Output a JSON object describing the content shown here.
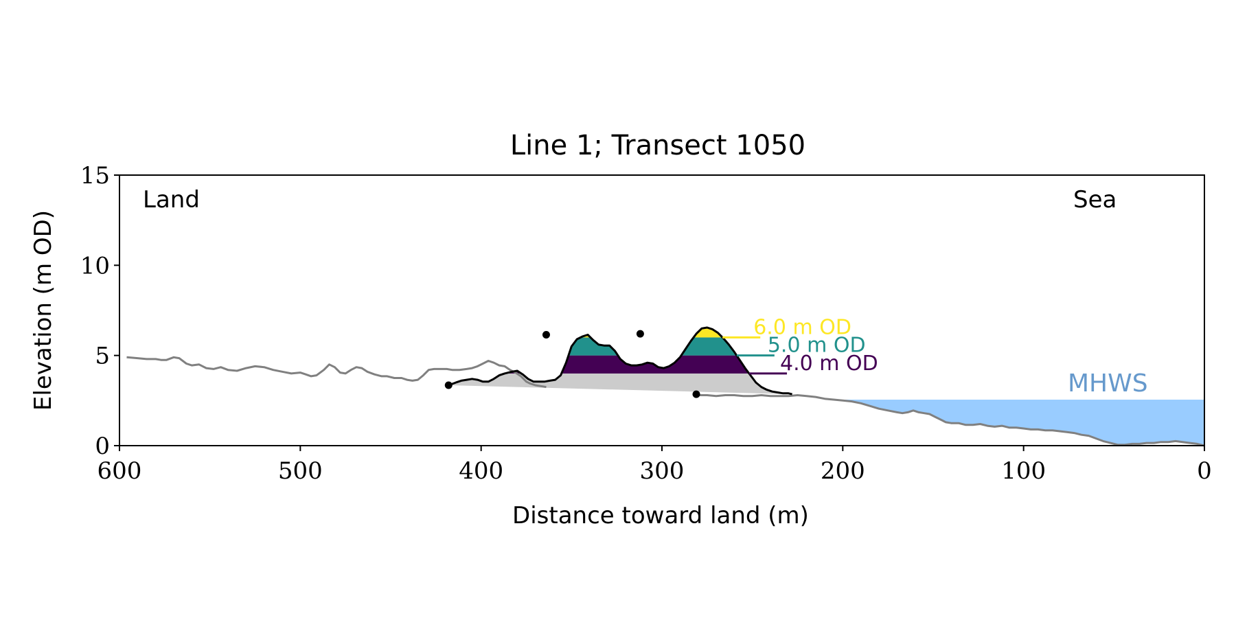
{
  "chart_data": {
    "type": "area",
    "title": "Line 1; Transect 1050",
    "xlabel": "Distance toward land (m)",
    "ylabel": "Elevation (m OD)",
    "xlim": [
      600,
      0
    ],
    "ylim": [
      0,
      15
    ],
    "x_reversed": true,
    "xticks": [
      600,
      500,
      400,
      300,
      200,
      100,
      0
    ],
    "yticks": [
      0,
      5,
      10,
      15
    ],
    "grid": false,
    "corner_labels": {
      "left": "Land",
      "right": "Sea"
    },
    "mhws": {
      "label": "MHWS",
      "elevation": 2.55,
      "color": "#99ccff",
      "label_color": "#6699cc"
    },
    "colors": {
      "profile": "#808080",
      "dune_outline": "#000000",
      "below_toe_fill": "#cccccc",
      "level_4": "#440154",
      "level_5": "#21918c",
      "level_6": "#fde725"
    },
    "profile": [
      [
        596,
        4.9
      ],
      [
        590,
        4.85
      ],
      [
        585,
        4.8
      ],
      [
        580,
        4.8
      ],
      [
        577,
        4.75
      ],
      [
        574,
        4.75
      ],
      [
        570,
        4.9
      ],
      [
        567,
        4.85
      ],
      [
        563,
        4.55
      ],
      [
        560,
        4.45
      ],
      [
        556,
        4.5
      ],
      [
        552,
        4.3
      ],
      [
        548,
        4.25
      ],
      [
        544,
        4.35
      ],
      [
        540,
        4.2
      ],
      [
        535,
        4.15
      ],
      [
        530,
        4.3
      ],
      [
        525,
        4.4
      ],
      [
        520,
        4.35
      ],
      [
        515,
        4.2
      ],
      [
        510,
        4.1
      ],
      [
        505,
        4.0
      ],
      [
        500,
        4.05
      ],
      [
        497,
        3.95
      ],
      [
        494,
        3.85
      ],
      [
        491,
        3.9
      ],
      [
        487,
        4.2
      ],
      [
        484,
        4.5
      ],
      [
        481,
        4.35
      ],
      [
        478,
        4.05
      ],
      [
        475,
        4.0
      ],
      [
        472,
        4.2
      ],
      [
        469,
        4.35
      ],
      [
        466,
        4.3
      ],
      [
        463,
        4.1
      ],
      [
        459,
        3.95
      ],
      [
        455,
        3.85
      ],
      [
        452,
        3.85
      ],
      [
        448,
        3.75
      ],
      [
        444,
        3.75
      ],
      [
        441,
        3.65
      ],
      [
        438,
        3.6
      ],
      [
        435,
        3.65
      ],
      [
        432,
        3.9
      ],
      [
        429,
        4.2
      ],
      [
        426,
        4.25
      ],
      [
        423,
        4.25
      ],
      [
        419,
        4.25
      ],
      [
        416,
        4.2
      ],
      [
        412,
        4.2
      ],
      [
        408,
        4.25
      ],
      [
        405,
        4.3
      ],
      [
        402,
        4.4
      ],
      [
        399,
        4.55
      ],
      [
        396,
        4.7
      ],
      [
        393,
        4.6
      ],
      [
        390,
        4.45
      ],
      [
        387,
        4.4
      ],
      [
        384,
        4.2
      ],
      [
        381,
        4.05
      ],
      [
        378,
        3.85
      ],
      [
        375,
        3.55
      ],
      [
        373,
        3.45
      ],
      [
        370,
        3.35
      ],
      [
        367,
        3.3
      ],
      [
        364,
        3.25
      ],
      [
        283,
        2.85
      ],
      [
        279,
        2.8
      ],
      [
        275,
        2.8
      ],
      [
        270,
        2.75
      ],
      [
        265,
        2.8
      ],
      [
        260,
        2.8
      ],
      [
        255,
        2.75
      ],
      [
        250,
        2.75
      ],
      [
        245,
        2.8
      ],
      [
        240,
        2.75
      ],
      [
        235,
        2.75
      ],
      [
        230,
        2.75
      ],
      [
        225,
        2.8
      ],
      [
        220,
        2.75
      ],
      [
        215,
        2.7
      ],
      [
        210,
        2.6
      ],
      [
        205,
        2.55
      ],
      [
        200,
        2.5
      ],
      [
        195,
        2.45
      ],
      [
        190,
        2.35
      ],
      [
        185,
        2.2
      ],
      [
        180,
        2.05
      ],
      [
        175,
        1.95
      ],
      [
        170,
        1.85
      ],
      [
        167,
        1.8
      ],
      [
        164,
        1.85
      ],
      [
        161,
        1.95
      ],
      [
        158,
        1.85
      ],
      [
        155,
        1.8
      ],
      [
        152,
        1.75
      ],
      [
        149,
        1.6
      ],
      [
        146,
        1.45
      ],
      [
        143,
        1.3
      ],
      [
        140,
        1.25
      ],
      [
        136,
        1.25
      ],
      [
        132,
        1.15
      ],
      [
        128,
        1.15
      ],
      [
        124,
        1.2
      ],
      [
        120,
        1.1
      ],
      [
        116,
        1.05
      ],
      [
        112,
        1.1
      ],
      [
        108,
        1.0
      ],
      [
        104,
        1.0
      ],
      [
        100,
        0.95
      ],
      [
        96,
        0.9
      ],
      [
        92,
        0.9
      ],
      [
        88,
        0.85
      ],
      [
        84,
        0.85
      ],
      [
        80,
        0.8
      ],
      [
        76,
        0.75
      ],
      [
        72,
        0.7
      ],
      [
        68,
        0.6
      ],
      [
        64,
        0.55
      ],
      [
        60,
        0.4
      ],
      [
        56,
        0.25
      ],
      [
        52,
        0.15
      ],
      [
        48,
        0.05
      ],
      [
        44,
        0.05
      ],
      [
        40,
        0.1
      ],
      [
        36,
        0.1
      ],
      [
        32,
        0.15
      ],
      [
        28,
        0.15
      ],
      [
        24,
        0.2
      ],
      [
        20,
        0.2
      ],
      [
        16,
        0.25
      ],
      [
        12,
        0.2
      ],
      [
        8,
        0.15
      ],
      [
        4,
        0.1
      ],
      [
        0,
        0.0
      ]
    ],
    "dune": [
      [
        418,
        3.35
      ],
      [
        414,
        3.5
      ],
      [
        411,
        3.6
      ],
      [
        408,
        3.65
      ],
      [
        405,
        3.7
      ],
      [
        402,
        3.65
      ],
      [
        399,
        3.55
      ],
      [
        396,
        3.55
      ],
      [
        393,
        3.7
      ],
      [
        390,
        3.9
      ],
      [
        387,
        4.0
      ],
      [
        383,
        4.1
      ],
      [
        380,
        4.15
      ],
      [
        377,
        3.95
      ],
      [
        374,
        3.7
      ],
      [
        371,
        3.55
      ],
      [
        368,
        3.55
      ],
      [
        365,
        3.55
      ],
      [
        362,
        3.6
      ],
      [
        359,
        3.65
      ],
      [
        356,
        3.9
      ],
      [
        353,
        4.6
      ],
      [
        350,
        5.5
      ],
      [
        347,
        5.9
      ],
      [
        344,
        6.05
      ],
      [
        341,
        6.15
      ],
      [
        338,
        5.85
      ],
      [
        335,
        5.6
      ],
      [
        332,
        5.55
      ],
      [
        329,
        5.55
      ],
      [
        326,
        5.25
      ],
      [
        323,
        4.8
      ],
      [
        320,
        4.55
      ],
      [
        317,
        4.45
      ],
      [
        314,
        4.45
      ],
      [
        311,
        4.5
      ],
      [
        308,
        4.6
      ],
      [
        305,
        4.55
      ],
      [
        302,
        4.35
      ],
      [
        299,
        4.3
      ],
      [
        296,
        4.4
      ],
      [
        293,
        4.6
      ],
      [
        290,
        4.9
      ],
      [
        287,
        5.35
      ],
      [
        284,
        5.8
      ],
      [
        281,
        6.2
      ],
      [
        278,
        6.5
      ],
      [
        275,
        6.55
      ],
      [
        272,
        6.45
      ],
      [
        269,
        6.25
      ],
      [
        266,
        5.95
      ],
      [
        263,
        5.6
      ],
      [
        260,
        5.2
      ],
      [
        257,
        4.75
      ],
      [
        254,
        4.3
      ],
      [
        251,
        3.9
      ],
      [
        248,
        3.5
      ],
      [
        245,
        3.25
      ],
      [
        242,
        3.1
      ],
      [
        239,
        3.0
      ],
      [
        236,
        2.95
      ],
      [
        233,
        2.9
      ],
      [
        230,
        2.9
      ],
      [
        228,
        2.85
      ]
    ],
    "dune_points": [
      {
        "x": 418,
        "y": 3.35
      },
      {
        "x": 364,
        "y": 6.15
      },
      {
        "x": 312,
        "y": 6.2
      },
      {
        "x": 281,
        "y": 2.85
      }
    ],
    "levels": [
      {
        "label": "6.0 m OD",
        "elevation": 6.0,
        "color_key": "level_6"
      },
      {
        "label": "5.0 m OD",
        "elevation": 5.0,
        "color_key": "level_5"
      },
      {
        "label": "4.0 m OD",
        "elevation": 4.0,
        "color_key": "level_4"
      }
    ]
  }
}
